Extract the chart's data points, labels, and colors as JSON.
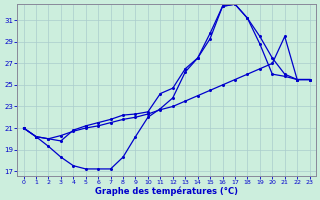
{
  "xlabel": "Graphe des températures (°C)",
  "bg_color": "#cceedd",
  "grid_color": "#aacccc",
  "line_color": "#0000cc",
  "xlim": [
    -0.5,
    23.5
  ],
  "ylim": [
    16.5,
    32.5
  ],
  "yticks": [
    17,
    19,
    21,
    23,
    25,
    27,
    29,
    31
  ],
  "xticks": [
    0,
    1,
    2,
    3,
    4,
    5,
    6,
    7,
    8,
    9,
    10,
    11,
    12,
    13,
    14,
    15,
    16,
    17,
    18,
    19,
    20,
    21,
    22,
    23
  ],
  "series1_x": [
    0,
    1,
    2,
    3,
    4,
    5,
    6,
    7,
    8,
    9,
    10,
    11,
    12,
    13,
    14,
    15,
    16,
    17,
    18,
    19,
    20,
    21,
    22,
    23
  ],
  "series1_y": [
    21.0,
    20.2,
    19.3,
    18.3,
    17.5,
    17.2,
    17.2,
    17.2,
    18.3,
    20.2,
    22.0,
    22.8,
    23.8,
    26.2,
    27.5,
    29.3,
    32.3,
    32.5,
    31.2,
    28.8,
    26.0,
    25.8,
    25.5,
    25.5
  ],
  "series2_x": [
    0,
    1,
    2,
    3,
    4,
    5,
    6,
    7,
    8,
    9,
    10,
    11,
    12,
    13,
    14,
    15,
    16,
    17,
    18,
    19,
    20,
    21,
    22,
    23
  ],
  "series2_y": [
    21.0,
    20.2,
    20.0,
    19.8,
    20.8,
    21.2,
    21.5,
    21.8,
    22.2,
    22.3,
    22.5,
    24.2,
    24.7,
    26.5,
    27.5,
    29.8,
    32.3,
    32.5,
    31.2,
    29.5,
    27.5,
    26.0,
    25.5,
    25.5
  ],
  "series3_x": [
    0,
    1,
    2,
    3,
    4,
    5,
    6,
    7,
    8,
    9,
    10,
    11,
    12,
    13,
    14,
    15,
    16,
    17,
    18,
    19,
    20,
    21,
    22,
    23
  ],
  "series3_y": [
    21.0,
    20.2,
    20.0,
    20.3,
    20.7,
    21.0,
    21.2,
    21.5,
    21.8,
    22.0,
    22.3,
    22.7,
    23.0,
    23.5,
    24.0,
    24.5,
    25.0,
    25.5,
    26.0,
    26.5,
    27.0,
    29.5,
    25.5,
    25.5
  ]
}
